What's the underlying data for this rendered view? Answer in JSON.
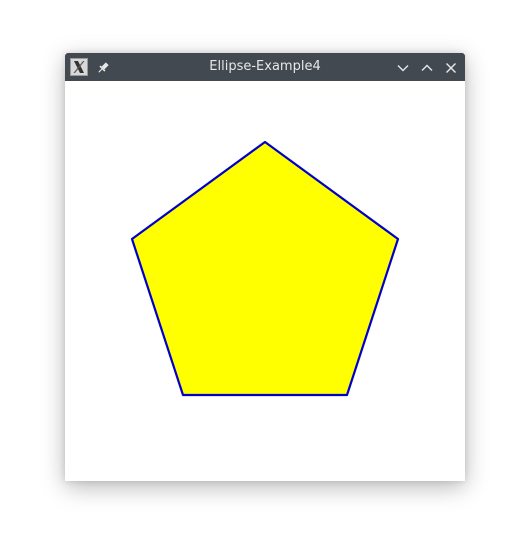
{
  "window": {
    "title": "Ellipse-Example4",
    "icons": {
      "app": "x-app-icon",
      "pin": "pin-icon",
      "minimize": "chevron-down-icon",
      "maximize": "chevron-up-icon",
      "close": "close-icon"
    },
    "colors": {
      "titlebar": "#434950",
      "title_text": "#e6e8ea"
    }
  },
  "canvas": {
    "shape": "pentagon",
    "fill_color": "#ffff00",
    "stroke_color": "#0000cc"
  }
}
